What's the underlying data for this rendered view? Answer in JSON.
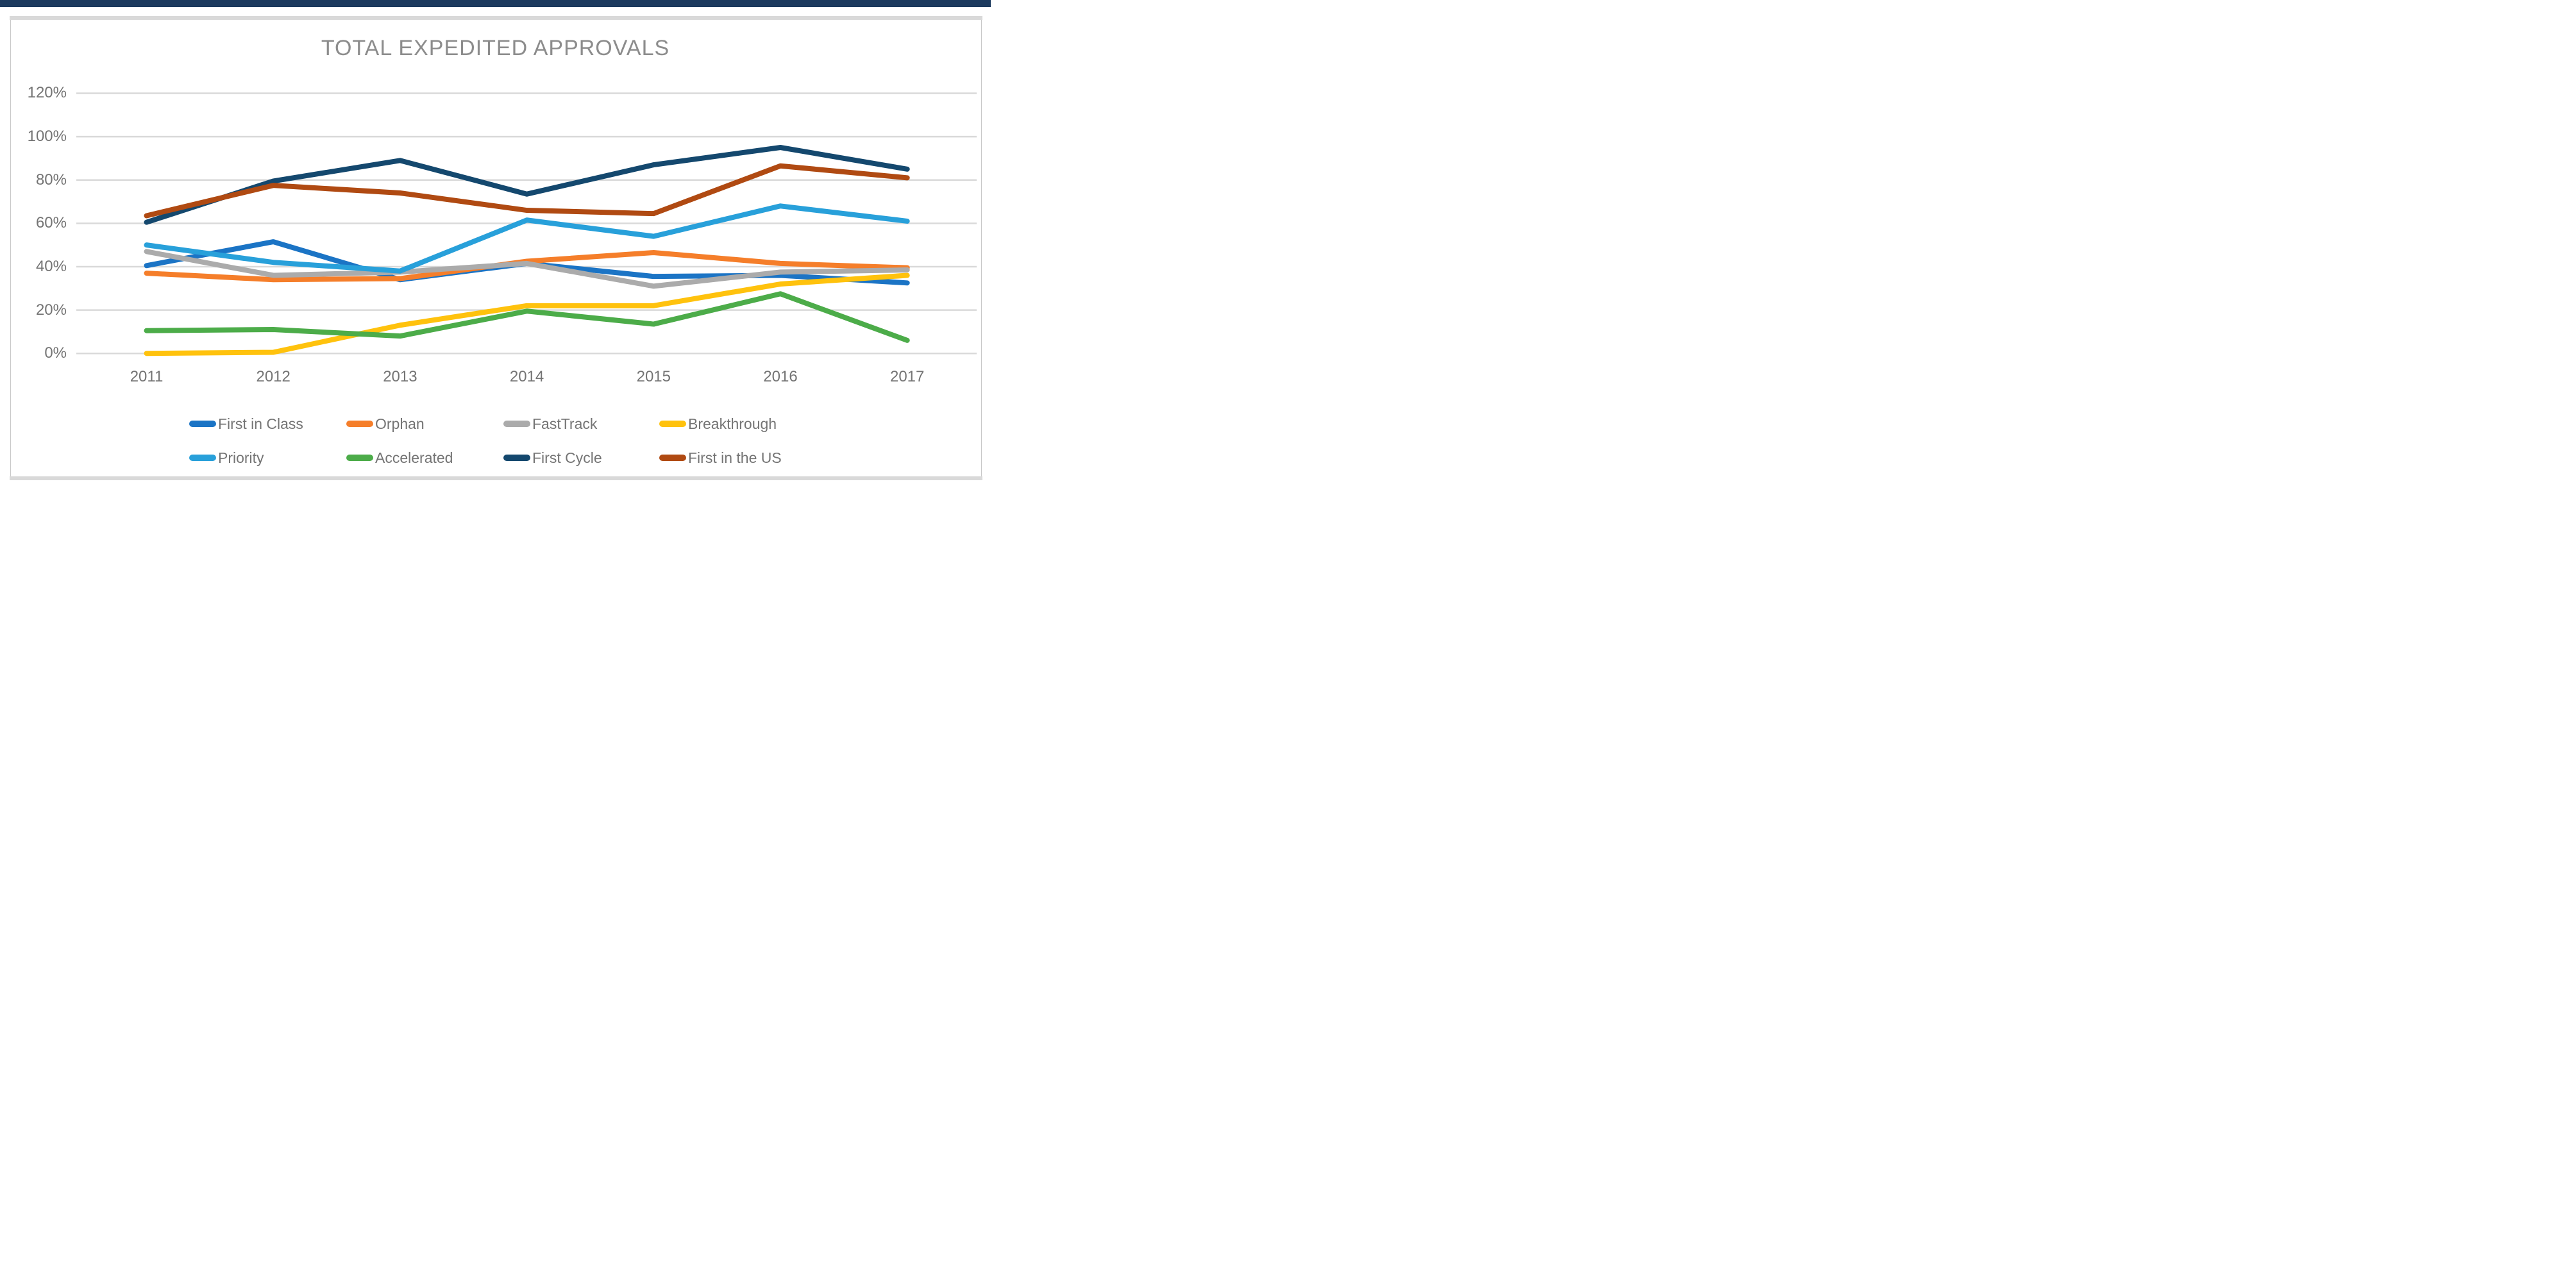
{
  "window": {
    "top_bar_color": "#1C3A5E",
    "frame_color": "#D9D9D9"
  },
  "chart_data": {
    "type": "line",
    "title": "TOTAL EXPEDITED APPROVALS",
    "title_color": "#8C8C8C",
    "xlabel": "",
    "ylabel": "",
    "x_categories": [
      "2011",
      "2012",
      "2013",
      "2014",
      "2015",
      "2016",
      "2017"
    ],
    "y_ticks": [
      {
        "label": "0%",
        "value": 0
      },
      {
        "label": "20%",
        "value": 20
      },
      {
        "label": "40%",
        "value": 40
      },
      {
        "label": "60%",
        "value": 60
      },
      {
        "label": "80%",
        "value": 80
      },
      {
        "label": "100%",
        "value": 100
      },
      {
        "label": "120%",
        "value": 120
      }
    ],
    "ylim": [
      0,
      120
    ],
    "grid": "horizontal",
    "gridline_color": "#D9D9D9",
    "legend_position": "bottom",
    "series": [
      {
        "name": "First in Class",
        "color": "#1B74C5",
        "values": [
          40.5,
          51.5,
          34,
          41.5,
          35.5,
          36,
          32.5
        ]
      },
      {
        "name": "Orphan",
        "color": "#F57E2A",
        "values": [
          37,
          34,
          34.5,
          42.5,
          46.5,
          41.5,
          39.5
        ]
      },
      {
        "name": "FastTrack",
        "color": "#ABABAB",
        "values": [
          47,
          36,
          37.5,
          41.5,
          31,
          37.5,
          38.5
        ]
      },
      {
        "name": "Breakthrough",
        "color": "#FFC20D",
        "values": [
          0,
          0.5,
          13,
          22,
          22,
          32,
          36
        ]
      },
      {
        "name": "Priority",
        "color": "#28A0DA",
        "values": [
          50,
          42,
          38,
          61.5,
          54,
          68,
          61
        ]
      },
      {
        "name": "Accelerated",
        "color": "#4CAC49",
        "values": [
          10.5,
          11,
          8,
          19.5,
          13.5,
          27.5,
          6
        ]
      },
      {
        "name": "First Cycle",
        "color": "#14486E",
        "values": [
          60.5,
          79.5,
          89,
          73.5,
          87,
          95,
          85
        ]
      },
      {
        "name": "First in the US",
        "color": "#B04A12",
        "values": [
          63.5,
          77.5,
          74,
          66,
          64.5,
          86.5,
          81
        ]
      }
    ],
    "legend_rows": [
      [
        "First in Class",
        "Orphan",
        "FastTrack",
        "Breakthrough"
      ],
      [
        "Priority",
        "Accelerated",
        "First Cycle",
        "First in the US"
      ]
    ]
  }
}
